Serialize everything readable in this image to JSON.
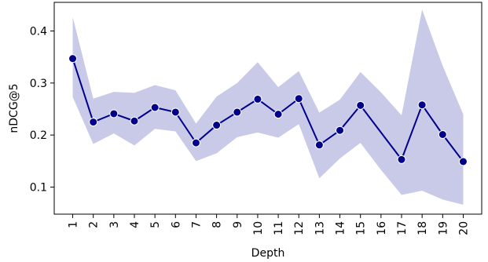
{
  "chart_data": {
    "type": "line",
    "title": "",
    "xlabel": "Depth",
    "ylabel": "nDCG@5",
    "x": [
      1,
      2,
      3,
      4,
      5,
      6,
      7,
      8,
      9,
      10,
      11,
      12,
      13,
      14,
      15,
      16,
      17,
      18,
      19,
      20
    ],
    "x_tick_labels": [
      "1",
      "2",
      "3",
      "4",
      "5",
      "6",
      "7",
      "8",
      "9",
      "10",
      "11",
      "12",
      "13",
      "14",
      "15",
      "16",
      "17",
      "18",
      "19",
      "20"
    ],
    "series": [
      {
        "values": [
          0.347,
          0.225,
          0.241,
          0.227,
          0.253,
          0.244,
          0.185,
          0.219,
          0.244,
          0.269,
          0.24,
          0.27,
          0.181,
          0.209,
          0.257,
          null,
          0.153,
          0.258,
          0.201,
          0.149
        ],
        "ci_upper": [
          0.427,
          0.27,
          0.283,
          0.281,
          0.296,
          0.286,
          0.222,
          0.274,
          0.3,
          0.34,
          0.292,
          0.323,
          0.243,
          0.268,
          0.321,
          0.282,
          0.238,
          0.441,
          0.333,
          0.24
        ],
        "ci_lower": [
          0.273,
          0.183,
          0.203,
          0.18,
          0.212,
          0.207,
          0.15,
          0.165,
          0.196,
          0.205,
          0.195,
          0.221,
          0.117,
          0.155,
          0.185,
          0.133,
          0.085,
          0.093,
          0.076,
          0.066
        ],
        "line_color": "#00008b",
        "marker_color": "#00008b",
        "band_color": "#c9c9e8"
      }
    ],
    "y_ticks": [
      0.1,
      0.2,
      0.3,
      0.4
    ],
    "y_tick_labels": [
      "0.1",
      "0.2",
      "0.3",
      "0.4"
    ],
    "xlim": [
      0.1,
      20.9
    ],
    "ylim": [
      0.048,
      0.455
    ],
    "grid": false,
    "legend": "none"
  }
}
